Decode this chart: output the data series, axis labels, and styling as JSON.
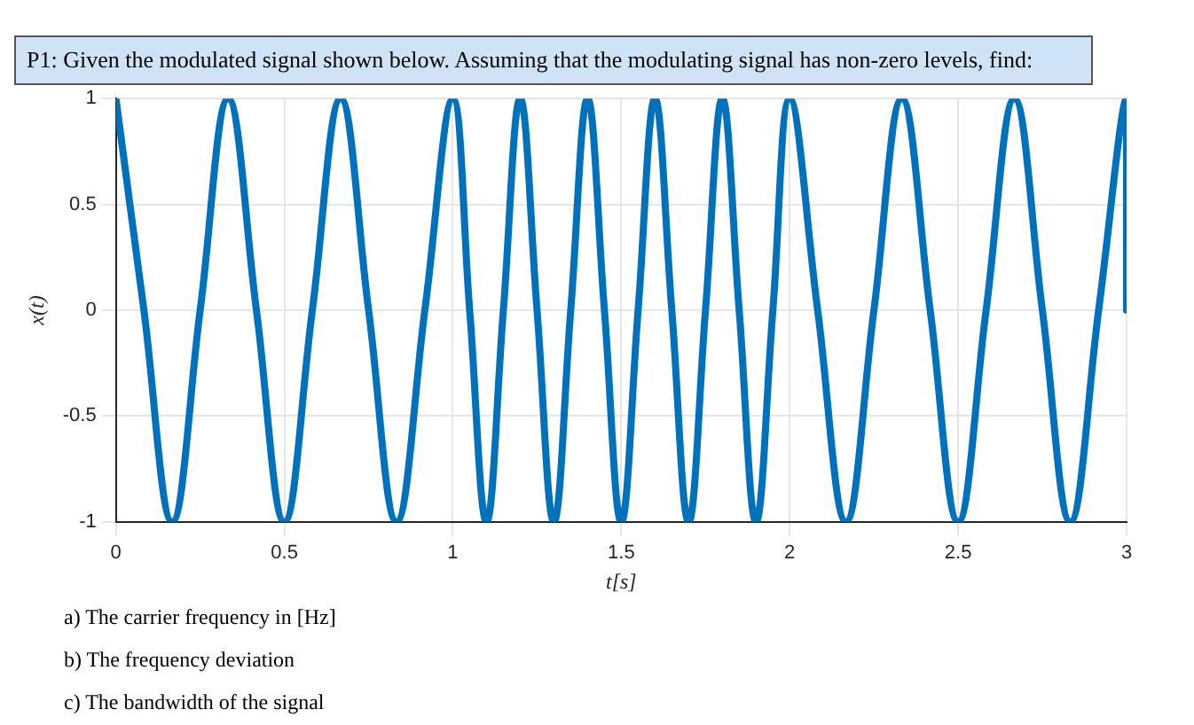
{
  "chart_data": {
    "type": "line",
    "title": "P1: Given the modulated signal shown below. Assuming that the modulating signal has non-zero levels, find:",
    "xlabel": "t[s]",
    "ylabel": "x(t)",
    "x": [
      0,
      0.083,
      0.167,
      0.25,
      0.333,
      0.417,
      0.5,
      0.583,
      0.667,
      0.75,
      0.833,
      0.917,
      1,
      1.05,
      1.1,
      1.15,
      1.2,
      1.25,
      1.3,
      1.35,
      1.4,
      1.45,
      1.5,
      1.55,
      1.6,
      1.65,
      1.7,
      1.75,
      1.8,
      1.85,
      1.9,
      1.95,
      2,
      2.083,
      2.167,
      2.25,
      2.333,
      2.417,
      2.5,
      2.583,
      2.667,
      2.75,
      2.833,
      2.917,
      3,
      3
    ],
    "series": [
      {
        "color": "#0072bd",
        "values": [
          1,
          0,
          -1,
          0,
          1,
          0,
          -1,
          0,
          1,
          0,
          -1,
          0,
          1,
          0,
          -1,
          0,
          1,
          0,
          -1,
          0,
          1,
          0,
          -1,
          0,
          1,
          0,
          -1,
          0,
          1,
          0,
          -1,
          0,
          1,
          0,
          -1,
          0,
          1,
          0,
          -1,
          0,
          1,
          0,
          -1,
          0,
          1,
          0
        ]
      }
    ],
    "xlim": [
      0,
      3
    ],
    "xticks": [
      0,
      0.5,
      1,
      1.5,
      2,
      2.5,
      3
    ],
    "ylim": [
      -1,
      1
    ],
    "yticks": [
      -1,
      -0.5,
      0,
      0.5,
      1
    ],
    "grid": true,
    "legend": false,
    "marker": "none",
    "line_style": "solid",
    "annotations": [
      "a) The carrier frequency in [Hz]",
      "b) The frequency deviation",
      "c) The bandwidth of the signal"
    ]
  }
}
